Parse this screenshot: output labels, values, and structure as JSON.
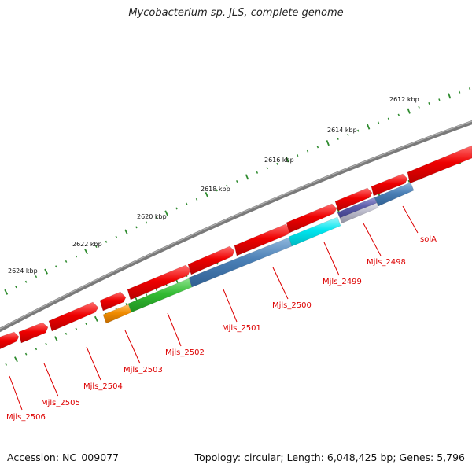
{
  "title": "Mycobacterium sp. JLS, complete genome",
  "footer": {
    "accession": "Accession: NC_009077",
    "summary": "Topology: circular; Length: 6,048,425 bp; Genes: 5,796"
  },
  "scale_labels": [
    "2612 kbp",
    "2614 kbp",
    "2616 kbp",
    "2618 kbp",
    "2620 kbp",
    "2622 kbp",
    "2624 kbp"
  ],
  "gene_labels": [
    "solA",
    "Mjls_2498",
    "Mjls_2499",
    "Mjls_2500",
    "Mjls_2501",
    "Mjls_2502",
    "Mjls_2503",
    "Mjls_2504",
    "Mjls_2505",
    "Mjls_2506"
  ],
  "colors": {
    "forward_gene": "#ee0000",
    "backbone": "#888888",
    "gene_label": "#dd0000",
    "tick": "#2e8b2e",
    "gene_blue": "#4a7fb5",
    "gene_cyan": "#00e5ee",
    "gene_green": "#33bb33",
    "gene_orange": "#f08c00",
    "gene_slate": "#5b5ba8",
    "gene_grey": "#b8b8c8"
  }
}
